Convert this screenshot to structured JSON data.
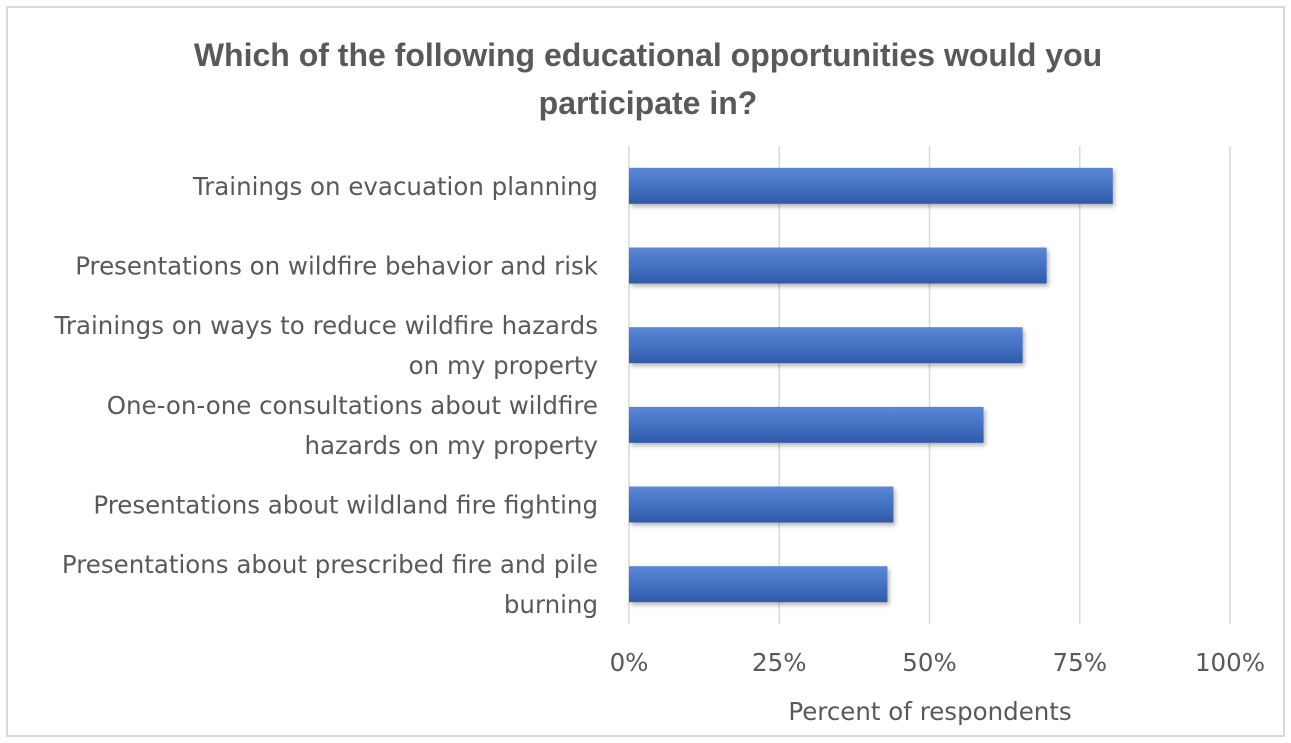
{
  "chart_data": {
    "type": "bar",
    "orientation": "horizontal",
    "title_lines": [
      "Which of the following educational opportunities would you",
      "participate in?"
    ],
    "xlabel": "Percent of respondents",
    "ylabel": "",
    "xlim": [
      0,
      100
    ],
    "x_ticks": [
      "0%",
      "25%",
      "50%",
      "75%",
      "100%"
    ],
    "grid": true,
    "legend": "none",
    "bar_color": "#4472c4",
    "categories": [
      {
        "lines": [
          "Trainings on evacuation planning"
        ],
        "value": 80.5
      },
      {
        "lines": [
          "Presentations on wildfire behavior and risk"
        ],
        "value": 69.5
      },
      {
        "lines": [
          "Trainings on ways to reduce wildfire hazards",
          "on my property"
        ],
        "value": 65.5
      },
      {
        "lines": [
          "One-on-one consultations about wildfire",
          "hazards on my property"
        ],
        "value": 59
      },
      {
        "lines": [
          "Presentations about wildland fire fighting"
        ],
        "value": 44
      },
      {
        "lines": [
          "Presentations about prescribed fire and pile",
          "burning"
        ],
        "value": 43
      }
    ]
  }
}
